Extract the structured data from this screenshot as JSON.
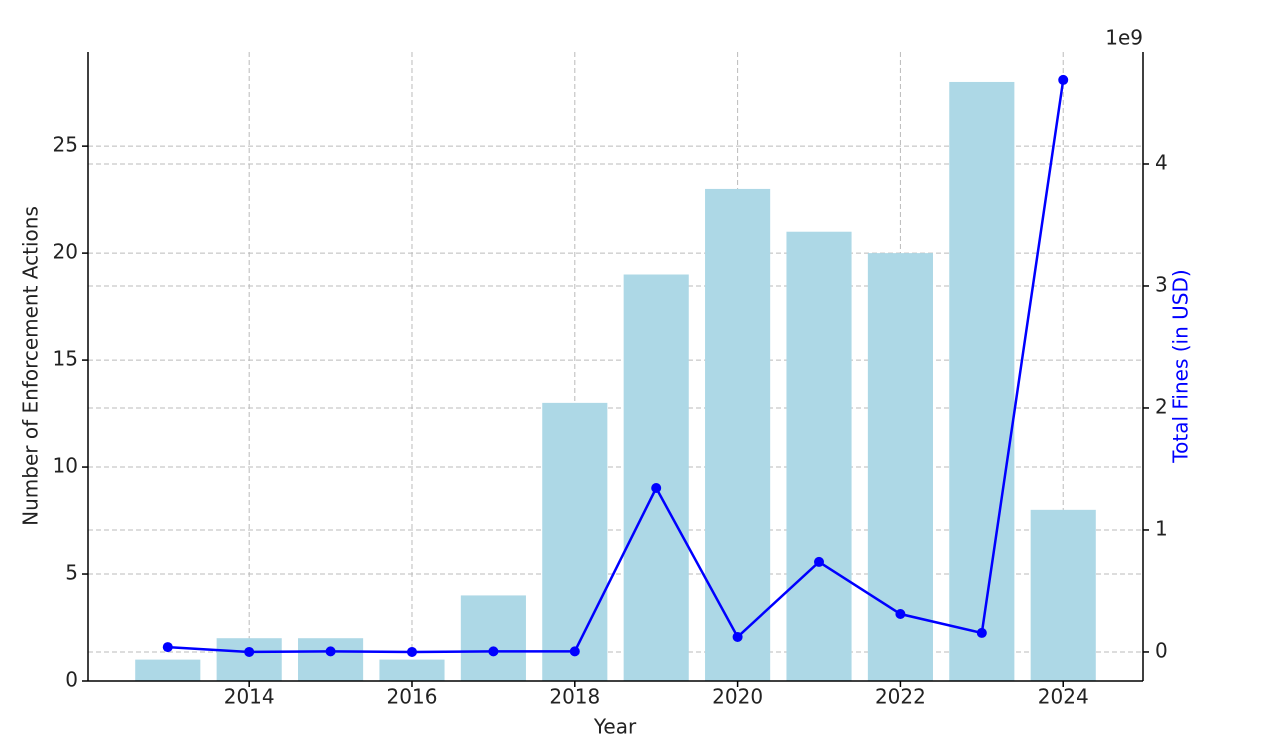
{
  "chart_data": {
    "type": "bar",
    "x_label": "Year",
    "y_label": "Number of Enforcement Actions",
    "y2_label": "Total Fines (in USD)",
    "y2_offset_label": "1e9",
    "x": [
      2013,
      2014,
      2015,
      2016,
      2017,
      2018,
      2019,
      2020,
      2021,
      2022,
      2023,
      2024
    ],
    "series": [
      {
        "color": "#add8e6",
        "values": [
          1,
          2,
          2,
          1,
          4,
          13,
          19,
          23,
          21,
          20,
          28,
          8
        ]
      },
      {
        "type": "line",
        "axis": "y2",
        "color": "#0000ff",
        "values": [
          40000000,
          0,
          5000000,
          0,
          5000000,
          5000000,
          1344000000,
          123000000,
          738000000,
          311000000,
          156000000,
          4689000000
        ]
      }
    ],
    "xlim": [
      2012.02,
      2024.98
    ],
    "xticks": [
      2014,
      2016,
      2018,
      2020,
      2022,
      2024
    ],
    "ylim": [
      0,
      29.4
    ],
    "yticks": [
      0,
      5,
      10,
      15,
      20,
      25
    ],
    "y2lim": [
      -238000000,
      4918000000
    ],
    "y2ticks": [
      {
        "value": 0,
        "label": "0"
      },
      {
        "value": 1000000000,
        "label": "1"
      },
      {
        "value": 2000000000,
        "label": "2"
      },
      {
        "value": 3000000000,
        "label": "3"
      },
      {
        "value": 4000000000,
        "label": "4"
      }
    ],
    "grid": true
  }
}
